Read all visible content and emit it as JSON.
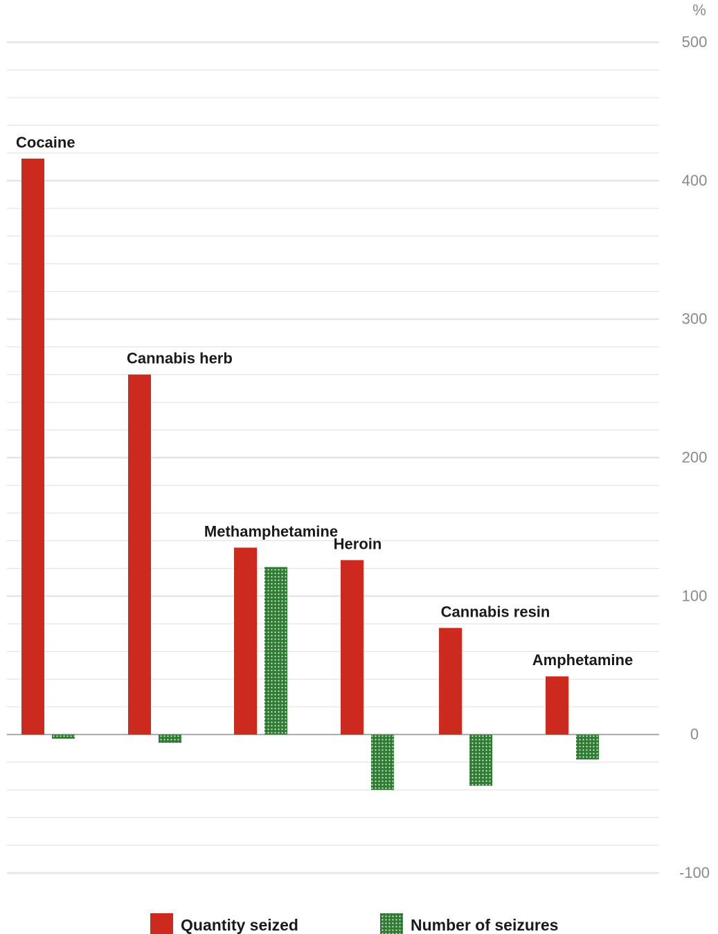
{
  "chart_data": {
    "type": "bar",
    "unit": "%",
    "categories": [
      "Cocaine",
      "Cannabis herb",
      "Methamphetamine",
      "Heroin",
      "Cannabis resin",
      "Amphetamine"
    ],
    "series": [
      {
        "name": "Quantity seized",
        "color": "#cc2a1e",
        "pattern": "solid",
        "values": [
          416,
          260,
          135,
          126,
          77,
          42
        ]
      },
      {
        "name": "Number of seizures",
        "color": "#2e7d32",
        "pattern": "dotted",
        "values": [
          -3,
          -6,
          121,
          -40,
          -37,
          -18
        ]
      }
    ],
    "ylim": [
      -100,
      500
    ],
    "yticks": [
      500,
      400,
      300,
      200,
      100,
      0,
      -100
    ],
    "ytick_labels": [
      "500",
      "400",
      "300",
      "200",
      "100",
      "0",
      "-100"
    ],
    "minor_gridlines": true,
    "legend_position": "bottom",
    "colors": {
      "grid": "#e4e4e4",
      "zero_line": "#a8a8a8"
    }
  }
}
